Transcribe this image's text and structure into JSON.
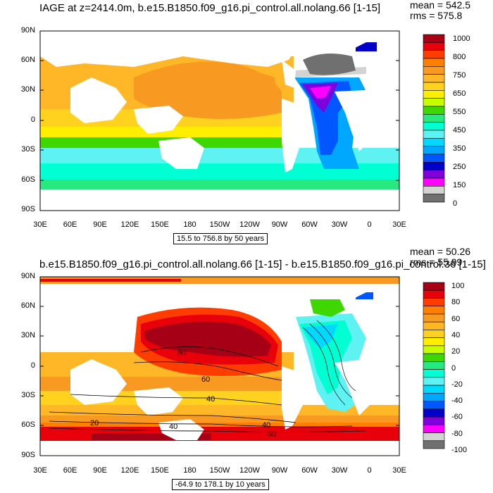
{
  "top": {
    "title": "IAGE at z=2414.0m, b.e15.B1850.f09_g16.pi_control.all.nolang.66 [1-15]",
    "mean": "mean = 542.5",
    "rms": "rms = 575.8",
    "range_text": "15.5 to 756.8 by 50 years",
    "colorbar_labels": [
      "1000",
      "800",
      "750",
      "650",
      "550",
      "450",
      "350",
      "250",
      "150",
      "0"
    ],
    "colorbar_colors": [
      "#a50015",
      "#e8000b",
      "#ff3d00",
      "#ff7f00",
      "#f89a22",
      "#ffb627",
      "#ffd21f",
      "#ffee00",
      "#c8ff00",
      "#3ed800",
      "#29e87f",
      "#00ffd2",
      "#5ff2f2",
      "#00d9ff",
      "#00a7ff",
      "#0057ff",
      "#0000c8",
      "#7f00dc",
      "#ff00ff",
      "#d3d3d3",
      "#707070"
    ]
  },
  "bottom": {
    "title": "b.e15.B1850.f09_g16.pi_control.all.nolang.66 [1-15] - b.e15.B1850.f09_g16.pi_control.36 [1-15]",
    "mean": "mean = 50.26",
    "rms": "rms = 55.99",
    "range_text": "-64.9 to 178.1 by 10 years",
    "colorbar_labels": [
      "100",
      "80",
      "60",
      "40",
      "20",
      "0",
      "-20",
      "-40",
      "-60",
      "-80",
      "-100"
    ],
    "colorbar_colors": [
      "#a50015",
      "#e8000b",
      "#ff3d00",
      "#ff7f00",
      "#f89a22",
      "#ffb627",
      "#ffd21f",
      "#ffee00",
      "#c8ff00",
      "#3ed800",
      "#29e87f",
      "#00ffd2",
      "#5ff2f2",
      "#00d9ff",
      "#00a7ff",
      "#0057ff",
      "#0000c8",
      "#7f00dc",
      "#ff00ff",
      "#d3d3d3",
      "#707070"
    ],
    "contour_labels": [
      "80",
      "60",
      "40",
      "40",
      "60",
      "40",
      "20"
    ]
  },
  "axes": {
    "lat_labels": [
      "90N",
      "60N",
      "30N",
      "0",
      "30S",
      "60S",
      "90S"
    ],
    "lon_labels": [
      "30E",
      "60E",
      "90E",
      "120E",
      "150E",
      "180",
      "150W",
      "120W",
      "90W",
      "60W",
      "30W",
      "0",
      "30E"
    ]
  },
  "colors": {
    "land": "#ffffff",
    "border": "#000000"
  }
}
